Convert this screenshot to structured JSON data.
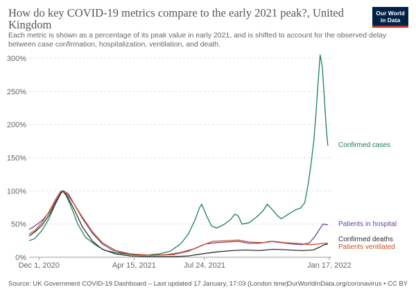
{
  "header": {
    "title": "How do key COVID-19 metrics compare to the early 2021 peak?, United Kingdom",
    "subtitle": "Each metric is shown as a percentage of its peak value in early 2021, and is shifted to account for the observed delay between case confirmation, hospitalization, ventilation, and death.",
    "logo_line1": "Our World",
    "logo_line2": "in Data"
  },
  "footer": {
    "source": "Source: UK Government COVID-19 Dashboard – Last updated 17 January, 17:03 (London time)",
    "url": "OurWorldInData.org/coronavirus • CC BY"
  },
  "colors": {
    "cases": "#18805a",
    "hospital": "#6d3e91",
    "deaths": "#2d2d2d",
    "ventilated": "#c9501c",
    "grid": "#dddddd",
    "axis_text": "#666666"
  },
  "chart_data": {
    "type": "line",
    "x_type": "date",
    "xlim": [
      "2020-11-17",
      "2022-01-20"
    ],
    "ylim": [
      0,
      300
    ],
    "yticks": [
      0,
      50,
      100,
      150,
      200,
      250,
      300
    ],
    "ytick_labels": [
      "0%",
      "50%",
      "100%",
      "150%",
      "200%",
      "250%",
      "300%"
    ],
    "xticks": [
      "2020-12-01",
      "2021-04-15",
      "2021-07-24",
      "2022-01-17"
    ],
    "xtick_labels": [
      "Dec 1, 2020",
      "Apr 15, 2021",
      "Jul 24, 2021",
      "Jan 17, 2022"
    ],
    "grid": true,
    "legend": "right, at line ends",
    "series": [
      {
        "name": "Confirmed cases",
        "color_key": "cases",
        "points": [
          [
            "2020-11-17",
            25
          ],
          [
            "2020-11-25",
            28
          ],
          [
            "2020-12-05",
            40
          ],
          [
            "2020-12-15",
            58
          ],
          [
            "2020-12-25",
            82
          ],
          [
            "2020-12-31",
            96
          ],
          [
            "2021-01-03",
            100
          ],
          [
            "2021-01-08",
            94
          ],
          [
            "2021-01-15",
            78
          ],
          [
            "2021-01-25",
            50
          ],
          [
            "2021-02-05",
            30
          ],
          [
            "2021-02-20",
            18
          ],
          [
            "2021-03-05",
            10
          ],
          [
            "2021-03-20",
            7
          ],
          [
            "2021-04-10",
            4
          ],
          [
            "2021-05-01",
            3
          ],
          [
            "2021-05-20",
            5
          ],
          [
            "2021-06-05",
            9
          ],
          [
            "2021-06-20",
            20
          ],
          [
            "2021-07-01",
            35
          ],
          [
            "2021-07-10",
            55
          ],
          [
            "2021-07-17",
            75
          ],
          [
            "2021-07-20",
            80
          ],
          [
            "2021-07-27",
            62
          ],
          [
            "2021-08-03",
            47
          ],
          [
            "2021-08-10",
            44
          ],
          [
            "2021-08-20",
            49
          ],
          [
            "2021-08-30",
            57
          ],
          [
            "2021-09-05",
            65
          ],
          [
            "2021-09-10",
            62
          ],
          [
            "2021-09-15",
            50
          ],
          [
            "2021-09-25",
            52
          ],
          [
            "2021-10-05",
            60
          ],
          [
            "2021-10-15",
            70
          ],
          [
            "2021-10-21",
            80
          ],
          [
            "2021-10-28",
            72
          ],
          [
            "2021-11-05",
            62
          ],
          [
            "2021-11-10",
            58
          ],
          [
            "2021-11-20",
            65
          ],
          [
            "2021-12-01",
            72
          ],
          [
            "2021-12-07",
            74
          ],
          [
            "2021-12-13",
            82
          ],
          [
            "2021-12-18",
            110
          ],
          [
            "2021-12-22",
            140
          ],
          [
            "2021-12-26",
            175
          ],
          [
            "2021-12-29",
            215
          ],
          [
            "2022-01-01",
            262
          ],
          [
            "2022-01-04",
            305
          ],
          [
            "2022-01-07",
            288
          ],
          [
            "2022-01-10",
            240
          ],
          [
            "2022-01-13",
            190
          ],
          [
            "2022-01-15",
            168
          ]
        ]
      },
      {
        "name": "Patients in hospital",
        "color_key": "hospital",
        "points": [
          [
            "2020-11-17",
            42
          ],
          [
            "2020-11-25",
            47
          ],
          [
            "2020-12-05",
            55
          ],
          [
            "2020-12-15",
            67
          ],
          [
            "2020-12-25",
            85
          ],
          [
            "2021-01-01",
            97
          ],
          [
            "2021-01-05",
            100
          ],
          [
            "2021-01-12",
            95
          ],
          [
            "2021-01-20",
            80
          ],
          [
            "2021-02-01",
            58
          ],
          [
            "2021-02-15",
            36
          ],
          [
            "2021-03-01",
            20
          ],
          [
            "2021-03-15",
            11
          ],
          [
            "2021-04-01",
            6
          ],
          [
            "2021-04-20",
            4
          ],
          [
            "2021-05-10",
            3
          ],
          [
            "2021-06-01",
            4
          ],
          [
            "2021-06-20",
            7
          ],
          [
            "2021-07-10",
            13
          ],
          [
            "2021-07-25",
            20
          ],
          [
            "2021-08-10",
            22
          ],
          [
            "2021-08-25",
            23
          ],
          [
            "2021-09-10",
            24
          ],
          [
            "2021-09-25",
            21
          ],
          [
            "2021-10-10",
            21
          ],
          [
            "2021-10-25",
            24
          ],
          [
            "2021-11-10",
            22
          ],
          [
            "2021-11-25",
            20
          ],
          [
            "2021-12-10",
            19
          ],
          [
            "2021-12-20",
            22
          ],
          [
            "2021-12-28",
            32
          ],
          [
            "2022-01-03",
            42
          ],
          [
            "2022-01-08",
            50
          ],
          [
            "2022-01-15",
            49
          ]
        ]
      },
      {
        "name": "Confirmed deaths",
        "color_key": "deaths",
        "points": [
          [
            "2020-11-17",
            32
          ],
          [
            "2020-11-25",
            38
          ],
          [
            "2020-12-05",
            48
          ],
          [
            "2020-12-15",
            63
          ],
          [
            "2020-12-25",
            82
          ],
          [
            "2021-01-01",
            96
          ],
          [
            "2021-01-04",
            100
          ],
          [
            "2021-01-10",
            92
          ],
          [
            "2021-01-20",
            72
          ],
          [
            "2021-02-01",
            45
          ],
          [
            "2021-02-15",
            24
          ],
          [
            "2021-03-01",
            12
          ],
          [
            "2021-03-20",
            5
          ],
          [
            "2021-04-10",
            2
          ],
          [
            "2021-05-10",
            1
          ],
          [
            "2021-06-10",
            1
          ],
          [
            "2021-07-01",
            2
          ],
          [
            "2021-07-20",
            5
          ],
          [
            "2021-08-10",
            8
          ],
          [
            "2021-09-01",
            10
          ],
          [
            "2021-09-20",
            11
          ],
          [
            "2021-10-10",
            10
          ],
          [
            "2021-10-30",
            12
          ],
          [
            "2021-11-20",
            11
          ],
          [
            "2021-12-10",
            10
          ],
          [
            "2021-12-25",
            11
          ],
          [
            "2022-01-03",
            15
          ],
          [
            "2022-01-10",
            19
          ],
          [
            "2022-01-15",
            20
          ]
        ]
      },
      {
        "name": "Patients ventilated",
        "color_key": "ventilated",
        "points": [
          [
            "2020-11-17",
            35
          ],
          [
            "2020-11-25",
            40
          ],
          [
            "2020-12-05",
            52
          ],
          [
            "2020-12-15",
            68
          ],
          [
            "2020-12-25",
            88
          ],
          [
            "2020-12-31",
            98
          ],
          [
            "2021-01-02",
            100
          ],
          [
            "2021-01-10",
            95
          ],
          [
            "2021-01-20",
            80
          ],
          [
            "2021-02-01",
            60
          ],
          [
            "2021-02-15",
            38
          ],
          [
            "2021-03-01",
            22
          ],
          [
            "2021-03-20",
            10
          ],
          [
            "2021-04-10",
            5
          ],
          [
            "2021-05-10",
            3
          ],
          [
            "2021-06-10",
            4
          ],
          [
            "2021-07-01",
            9
          ],
          [
            "2021-07-20",
            18
          ],
          [
            "2021-08-05",
            24
          ],
          [
            "2021-08-25",
            25
          ],
          [
            "2021-09-10",
            26
          ],
          [
            "2021-09-25",
            23
          ],
          [
            "2021-10-15",
            22
          ],
          [
            "2021-10-30",
            24
          ],
          [
            "2021-11-15",
            22
          ],
          [
            "2021-12-01",
            21
          ],
          [
            "2021-12-20",
            19
          ],
          [
            "2022-01-01",
            20
          ],
          [
            "2022-01-08",
            21
          ],
          [
            "2022-01-15",
            21
          ]
        ]
      }
    ],
    "end_labels": [
      {
        "text": "Confirmed cases",
        "color_key": "cases"
      },
      {
        "text": "Patients in hospital",
        "color_key": "hospital"
      },
      {
        "text": "Confirmed deaths",
        "color_key": "deaths"
      },
      {
        "text": "Patients ventilated",
        "color_key": "ventilated"
      }
    ]
  }
}
